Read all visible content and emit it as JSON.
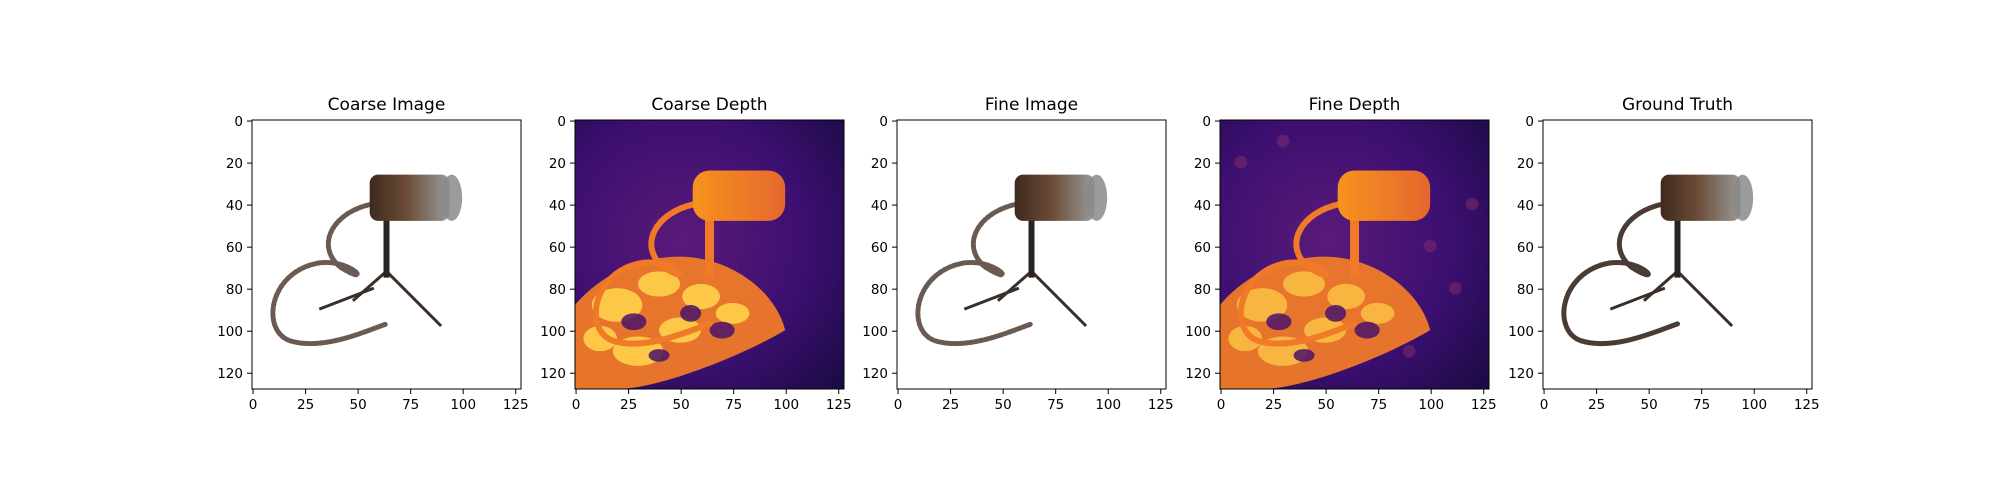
{
  "figure": {
    "panels": [
      {
        "title": "Coarse Image",
        "kind": "image"
      },
      {
        "title": "Coarse Depth",
        "kind": "depth"
      },
      {
        "title": "Fine Image",
        "kind": "image"
      },
      {
        "title": "Fine Depth",
        "kind": "depth"
      },
      {
        "title": "Ground Truth",
        "kind": "gt"
      }
    ],
    "colors": {
      "depth_background": "#2a0a5a",
      "depth_near": "#f07a28",
      "depth_hot": "#ffd24a",
      "mic_body": "#5a4030",
      "mic_grille": "#8a8a8a"
    }
  },
  "chart_data": [
    {
      "type": "image",
      "title": "Coarse Image",
      "xlim": [
        0,
        128
      ],
      "ylim": [
        128,
        0
      ],
      "xticks": [
        0,
        25,
        50,
        75,
        100,
        125
      ],
      "yticks": [
        0,
        20,
        40,
        60,
        80,
        100,
        120
      ]
    },
    {
      "type": "heatmap",
      "title": "Coarse Depth",
      "colormap": "inferno",
      "xlim": [
        0,
        128
      ],
      "ylim": [
        128,
        0
      ],
      "xticks": [
        0,
        25,
        50,
        75,
        100,
        125
      ],
      "yticks": [
        0,
        20,
        40,
        60,
        80,
        100,
        120
      ]
    },
    {
      "type": "image",
      "title": "Fine Image",
      "xlim": [
        0,
        128
      ],
      "ylim": [
        128,
        0
      ],
      "xticks": [
        0,
        25,
        50,
        75,
        100,
        125
      ],
      "yticks": [
        0,
        20,
        40,
        60,
        80,
        100,
        120
      ]
    },
    {
      "type": "heatmap",
      "title": "Fine Depth",
      "colormap": "inferno",
      "xlim": [
        0,
        128
      ],
      "ylim": [
        128,
        0
      ],
      "xticks": [
        0,
        25,
        50,
        75,
        100,
        125
      ],
      "yticks": [
        0,
        20,
        40,
        60,
        80,
        100,
        120
      ]
    },
    {
      "type": "image",
      "title": "Ground Truth",
      "xlim": [
        0,
        128
      ],
      "ylim": [
        128,
        0
      ],
      "xticks": [
        0,
        25,
        50,
        75,
        100,
        125
      ],
      "yticks": [
        0,
        20,
        40,
        60,
        80,
        100,
        120
      ]
    }
  ]
}
